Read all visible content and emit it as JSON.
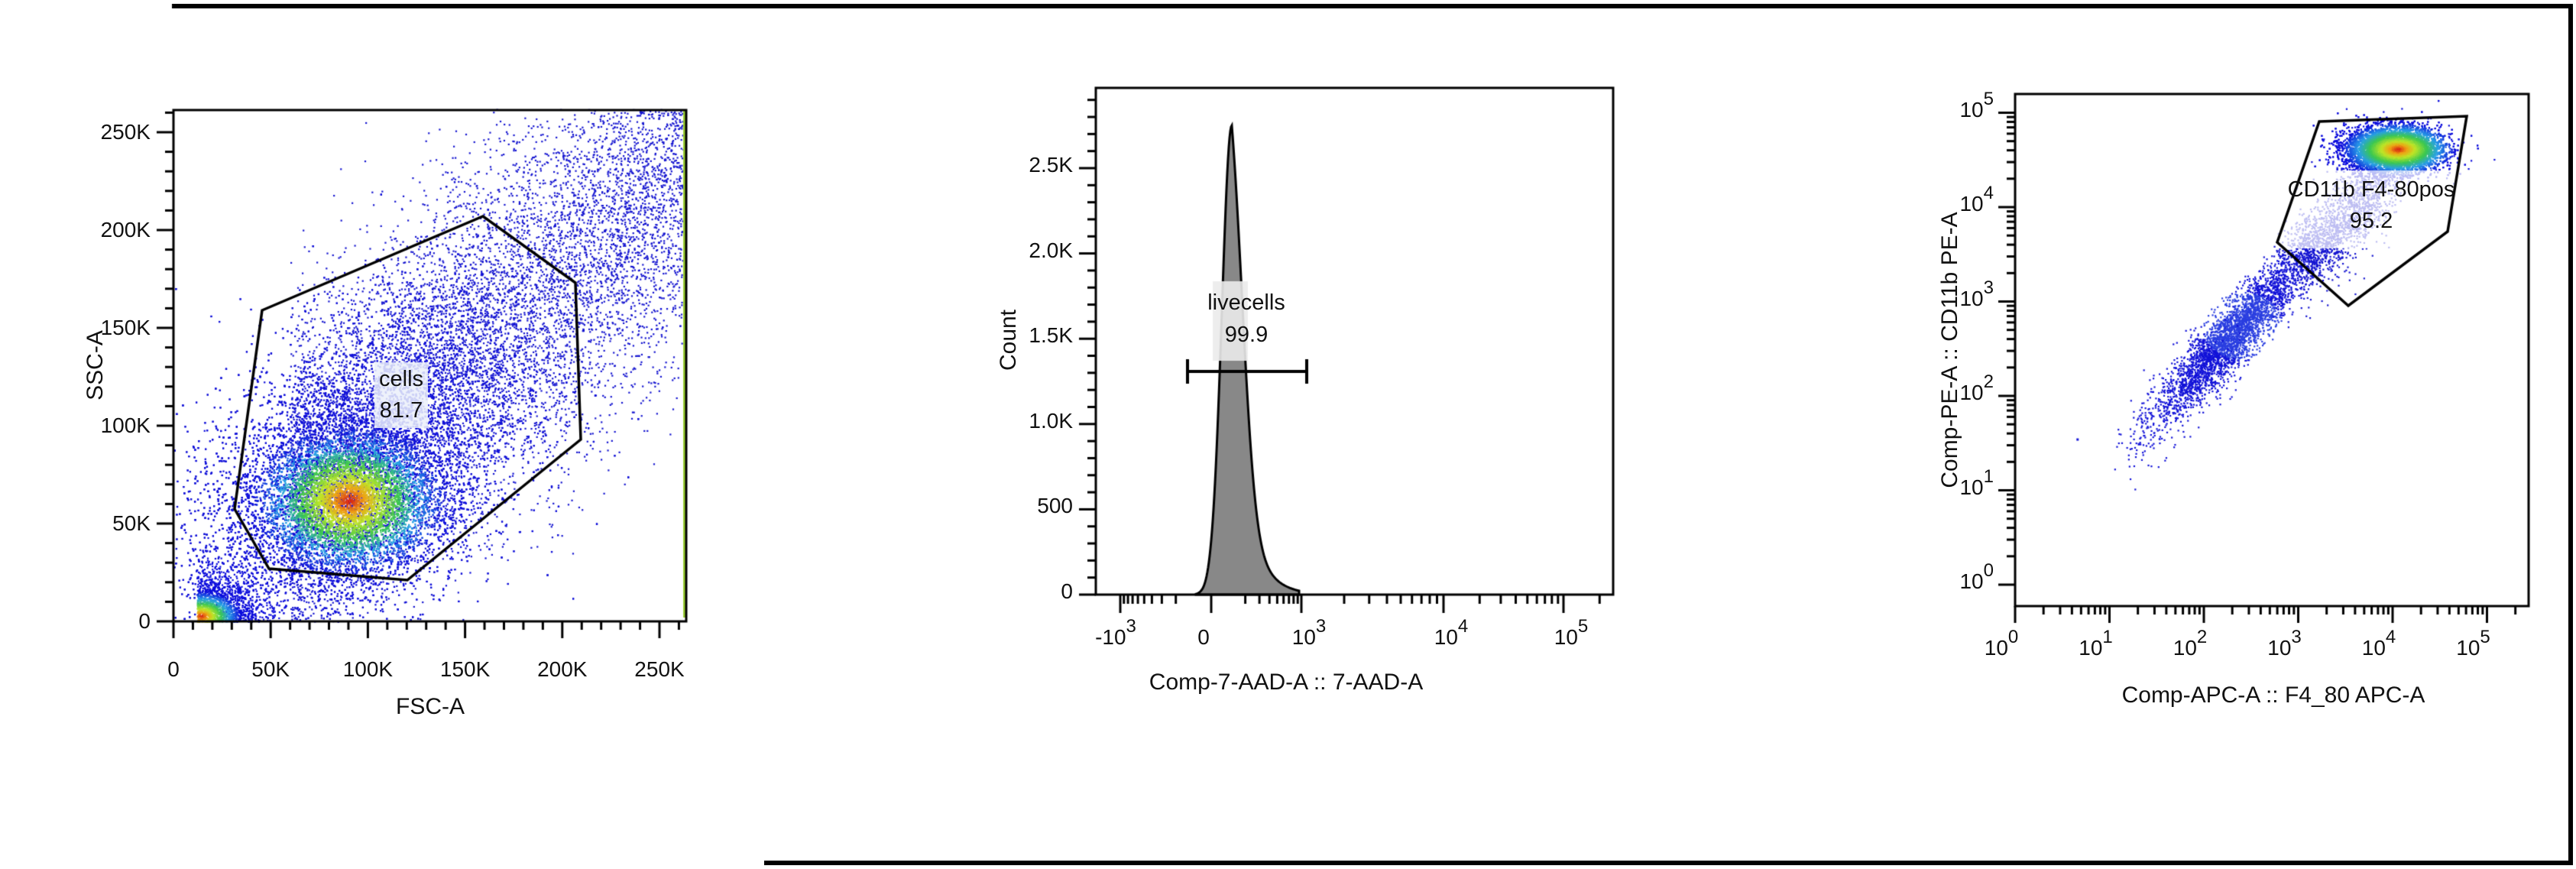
{
  "chart_data": [
    {
      "type": "scatter",
      "subtype": "flow-cytometry-density-dot-plot",
      "title": "",
      "xlabel": "FSC-A",
      "ylabel": "SSC-A",
      "xscale": "linear",
      "yscale": "linear",
      "xlim": [
        0,
        262144
      ],
      "ylim": [
        0,
        262144
      ],
      "x_ticks": [
        "0",
        "50K",
        "100K",
        "150K",
        "200K",
        "250K"
      ],
      "y_ticks": [
        "0",
        "50K",
        "100K",
        "150K",
        "200K",
        "250K"
      ],
      "gate": {
        "name": "cells",
        "value": "81.7",
        "shape": "polygon",
        "vertices_K": [
          [
            46,
            158
          ],
          [
            160,
            207
          ],
          [
            207,
            176
          ],
          [
            210,
            93
          ],
          [
            121,
            21
          ],
          [
            49,
            27
          ],
          [
            31,
            57
          ]
        ]
      },
      "density_peak": {
        "x_K": 90,
        "y_K": 60
      },
      "grid": false,
      "legend": null
    },
    {
      "type": "area",
      "subtype": "histogram",
      "title": "",
      "xlabel": "Comp-7-AAD-A :: 7-AAD-A",
      "ylabel": "Count",
      "xscale": "biexponential",
      "yscale": "linear",
      "ylim": [
        0,
        3000
      ],
      "x_ticks": [
        {
          "base": "-10",
          "exp": "3"
        },
        {
          "base": "0",
          "exp": ""
        },
        {
          "base": "10",
          "exp": "3"
        },
        {
          "base": "10",
          "exp": "4"
        },
        {
          "base": "10",
          "exp": "5"
        }
      ],
      "y_ticks": [
        "0",
        "500",
        "1.0K",
        "1.5K",
        "2.0K",
        "2.5K"
      ],
      "peak": {
        "x": 150,
        "count": 2750
      },
      "gate": {
        "name": "livecells",
        "value": "99.9",
        "shape": "range",
        "range": [
          -300,
          1100
        ],
        "y_count": 1310
      },
      "fill_color": "#888888",
      "grid": false,
      "legend": null
    },
    {
      "type": "scatter",
      "subtype": "flow-cytometry-density-dot-plot",
      "title": "",
      "xlabel": "Comp-APC-A :: F4_80 APC-A",
      "ylabel": "Comp-PE-A :: CD11b PE-A",
      "xscale": "log",
      "yscale": "log",
      "xlim": [
        1,
        260000
      ],
      "ylim": [
        1,
        260000
      ],
      "x_ticks": [
        {
          "base": "10",
          "exp": "0"
        },
        {
          "base": "10",
          "exp": "1"
        },
        {
          "base": "10",
          "exp": "2"
        },
        {
          "base": "10",
          "exp": "3"
        },
        {
          "base": "10",
          "exp": "4"
        },
        {
          "base": "10",
          "exp": "5"
        }
      ],
      "y_ticks": [
        {
          "base": "10",
          "exp": "0"
        },
        {
          "base": "10",
          "exp": "1"
        },
        {
          "base": "10",
          "exp": "2"
        },
        {
          "base": "10",
          "exp": "3"
        },
        {
          "base": "10",
          "exp": "4"
        },
        {
          "base": "10",
          "exp": "5"
        }
      ],
      "gate": {
        "name": "CD11b F4-80pos",
        "value": "95.2",
        "shape": "polygon"
      },
      "density_peak": {
        "x": 10000,
        "y": 40000
      },
      "grid": false,
      "legend": null
    }
  ],
  "panels": {
    "p1": {
      "xlabel": "FSC-A",
      "ylabel": "SSC-A",
      "xticks": [
        "0",
        "50K",
        "100K",
        "150K",
        "200K",
        "250K"
      ],
      "yticks": [
        "0",
        "50K",
        "100K",
        "150K",
        "200K",
        "250K"
      ],
      "gate_name": "cells",
      "gate_value": "81.7"
    },
    "p2": {
      "xlabel": "Comp-7-AAD-A :: 7-AAD-A",
      "ylabel": "Count",
      "xticks": [
        {
          "base": "-10",
          "exp": "3"
        },
        {
          "base": "0",
          "exp": ""
        },
        {
          "base": "10",
          "exp": "3"
        },
        {
          "base": "10",
          "exp": "4"
        },
        {
          "base": "10",
          "exp": "5"
        }
      ],
      "yticks": [
        "0",
        "500",
        "1.0K",
        "1.5K",
        "2.0K",
        "2.5K"
      ],
      "gate_name": "livecells",
      "gate_value": "99.9"
    },
    "p3": {
      "xlabel": "Comp-APC-A :: F4_80 APC-A",
      "ylabel": "Comp-PE-A :: CD11b PE-A",
      "xticks": [
        {
          "base": "10",
          "exp": "0"
        },
        {
          "base": "10",
          "exp": "1"
        },
        {
          "base": "10",
          "exp": "2"
        },
        {
          "base": "10",
          "exp": "3"
        },
        {
          "base": "10",
          "exp": "4"
        },
        {
          "base": "10",
          "exp": "5"
        }
      ],
      "yticks": [
        {
          "base": "10",
          "exp": "0"
        },
        {
          "base": "10",
          "exp": "1"
        },
        {
          "base": "10",
          "exp": "2"
        },
        {
          "base": "10",
          "exp": "3"
        },
        {
          "base": "10",
          "exp": "4"
        },
        {
          "base": "10",
          "exp": "5"
        }
      ],
      "gate_name": "CD11b F4-80pos",
      "gate_value": "95.2"
    }
  },
  "colors": {
    "axis": "#000000",
    "histogram_fill": "#888888",
    "density_low": "#0000dd",
    "density_mid": "#33cc33",
    "density_high": "#dd1111"
  }
}
